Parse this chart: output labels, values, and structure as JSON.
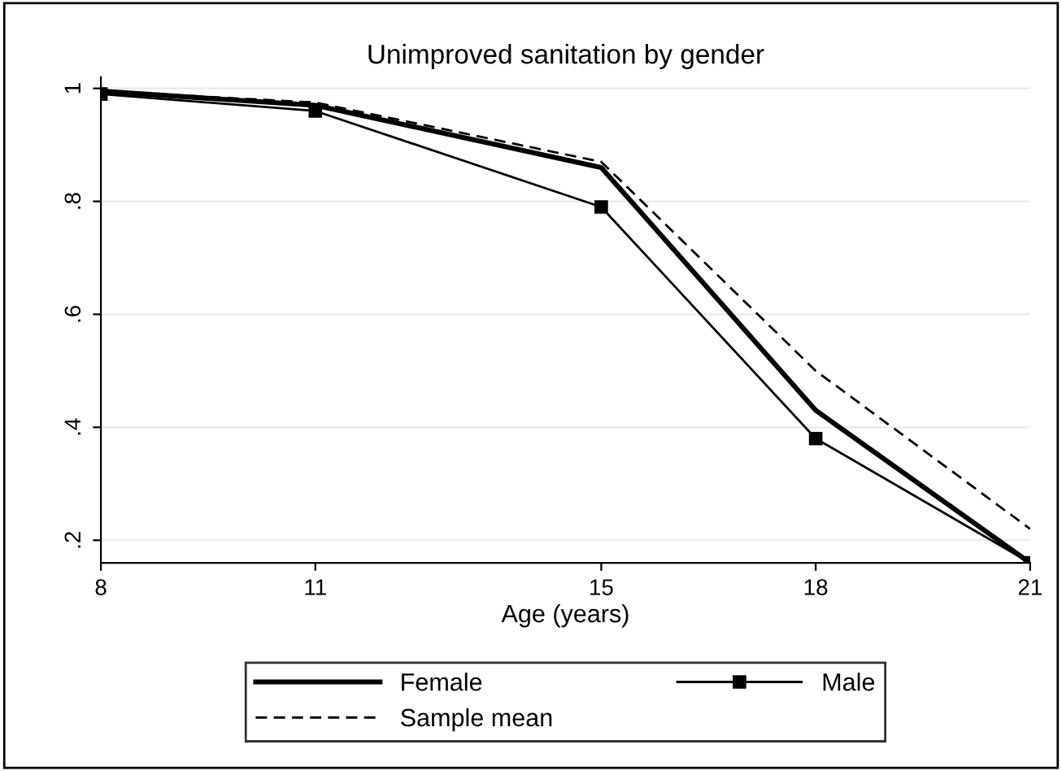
{
  "chart_data": {
    "type": "line",
    "title": "Unimproved sanitation by gender",
    "xlabel": "Age (years)",
    "x": [
      8,
      11,
      15,
      18,
      21
    ],
    "series": [
      {
        "name": "Female",
        "color": "#000000",
        "values": [
          0.995,
          0.97,
          0.86,
          0.43,
          0.16
        ],
        "line_style": "solid",
        "marker": "none"
      },
      {
        "name": "Male",
        "color": "#000000",
        "values": [
          0.99,
          0.96,
          0.79,
          0.38,
          0.16
        ],
        "line_style": "solid",
        "marker": "square"
      },
      {
        "name": "Sample mean",
        "color": "#000000",
        "values": [
          0.995,
          0.975,
          0.87,
          0.5,
          0.22
        ],
        "line_style": "dashed",
        "marker": "none"
      }
    ],
    "xlim": [
      8,
      21
    ],
    "xticks": [
      8,
      11,
      15,
      18,
      21
    ],
    "ylim": [
      0.16,
      1.02
    ],
    "yticks": [
      {
        "value": 0.2,
        "label": ".2"
      },
      {
        "value": 0.4,
        "label": ".4"
      },
      {
        "value": 0.6,
        "label": ".6"
      },
      {
        "value": 0.8,
        "label": ".8"
      },
      {
        "value": 1,
        "label": "1"
      }
    ],
    "grid": "y",
    "legend": "bottom"
  }
}
